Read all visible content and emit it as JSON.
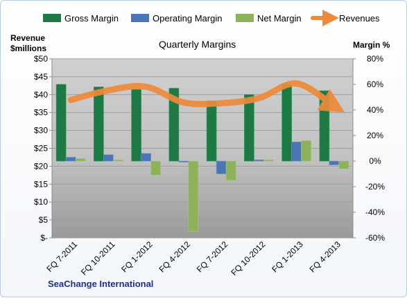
{
  "chart_data": {
    "type": "bar",
    "title": "Quarterly Margins",
    "footer": "SeaChange International",
    "left_axis": {
      "title_line1": "Revenue",
      "title_line2": "$millions",
      "ticks": [
        "$50",
        "$45",
        "$40",
        "$35",
        "$30",
        "$25",
        "$20",
        "$15",
        "$10",
        "$5",
        "$-"
      ],
      "range": [
        0,
        50
      ]
    },
    "right_axis": {
      "title": "Margin %",
      "ticks": [
        "80%",
        "60%",
        "40%",
        "20%",
        "0%",
        "-20%",
        "-40%",
        "-60%"
      ],
      "range": [
        -60,
        80
      ]
    },
    "categories": [
      "FQ 7-2011",
      "FQ 10-2011",
      "FQ 1-2012",
      "FQ 4-2012",
      "FQ 7-2012",
      "FQ 10-2012",
      "FQ 1-2013",
      "FQ 4-2013"
    ],
    "legend": [
      "Gross Margin",
      "Operating Margin",
      "Net Margin",
      "Revenues"
    ],
    "series": [
      {
        "name": "Gross Margin",
        "axis": "right",
        "color": "#1e7a45",
        "values": [
          60,
          58,
          56,
          57,
          47,
          52,
          60,
          55
        ]
      },
      {
        "name": "Operating Margin",
        "axis": "right",
        "color": "#4a76b8",
        "values": [
          3,
          5,
          6,
          0,
          -10,
          1,
          15,
          -3
        ]
      },
      {
        "name": "Net Margin",
        "axis": "right",
        "color": "#8db25a",
        "values": [
          2,
          1,
          -11,
          -55,
          -15,
          1,
          16,
          -6
        ]
      },
      {
        "name": "Revenues",
        "axis": "left",
        "color": "#ee8a3a",
        "values": [
          38.5,
          41.2,
          42.2,
          37.8,
          37.6,
          39.0,
          43.1,
          36.8
        ]
      }
    ]
  }
}
